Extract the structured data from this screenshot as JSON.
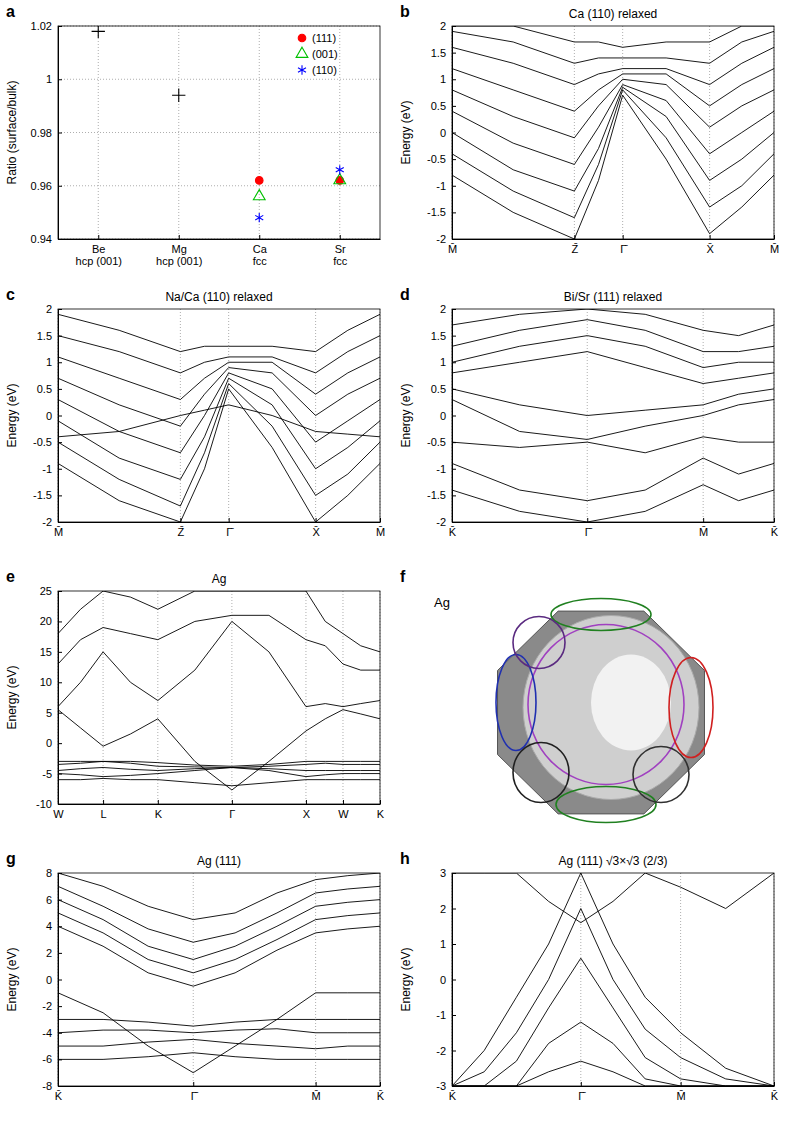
{
  "chart_data": [
    {
      "type": "scatter",
      "panel_label": "a",
      "ylabel": "Ratio (surface/bulk)",
      "categories": [
        "Be\nhcp (001)",
        "Mg\nhcp (001)",
        "Ca\nfcc",
        "Sr\nfcc"
      ],
      "ylim": [
        0.94,
        1.02
      ],
      "yticks": [
        0.94,
        0.96,
        0.98,
        1,
        1.02
      ],
      "grid": true,
      "legend": "top-right",
      "series": [
        {
          "color": "#000000",
          "marker": "plus",
          "values": [
            1.018,
            0.994,
            null,
            null
          ]
        },
        {
          "name": "(111)",
          "color": "#ff0000",
          "marker": "circle",
          "values": [
            null,
            null,
            0.962,
            0.962
          ]
        },
        {
          "name": "(001)",
          "color": "#00c000",
          "marker": "triangle-open",
          "values": [
            null,
            null,
            0.956,
            0.962
          ]
        },
        {
          "name": "(110)",
          "color": "#0000ff",
          "marker": "asterisk",
          "values": [
            null,
            null,
            0.948,
            0.966
          ]
        }
      ]
    },
    {
      "type": "line",
      "panel_label": "b",
      "title": "Ca (110) relaxed",
      "ylabel": "Energy (eV)",
      "color": "#000000",
      "grid": "x",
      "x": [
        0,
        0.19,
        0.38,
        0.455,
        0.53,
        0.665,
        0.8,
        0.9,
        1
      ],
      "xlim": [
        0,
        1
      ],
      "xticks": [
        {
          "value": 0,
          "label": "M̄"
        },
        {
          "value": 0.38,
          "label": "Z̄"
        },
        {
          "value": 0.53,
          "label": "Γ̄"
        },
        {
          "value": 0.8,
          "label": "X̄"
        },
        {
          "value": 1,
          "label": "M̄"
        }
      ],
      "ylim": [
        -2,
        2
      ],
      "yticks": [
        -2,
        -1.5,
        -1,
        -0.5,
        0,
        0.5,
        1,
        1.5,
        2
      ],
      "series": [
        {
          "values": [
            -0.8,
            -1.5,
            -2.0,
            -0.9,
            0.7,
            -0.5,
            -1.9,
            -1.4,
            -0.8
          ]
        },
        {
          "values": [
            -0.4,
            -1.1,
            -1.6,
            -0.6,
            0.8,
            -0.1,
            -1.4,
            -1.0,
            -0.4
          ]
        },
        {
          "values": [
            0.0,
            -0.7,
            -1.1,
            -0.3,
            0.85,
            0.3,
            -0.9,
            -0.5,
            0.0
          ]
        },
        {
          "values": [
            0.4,
            -0.2,
            -0.6,
            0.1,
            0.9,
            0.6,
            -0.4,
            0.0,
            0.4
          ]
        },
        {
          "values": [
            0.8,
            0.3,
            -0.1,
            0.5,
            1.0,
            0.9,
            0.1,
            0.5,
            0.8
          ]
        },
        {
          "values": [
            1.2,
            0.8,
            0.4,
            0.8,
            1.1,
            1.1,
            0.5,
            0.9,
            1.2
          ]
        },
        {
          "values": [
            1.6,
            1.3,
            0.9,
            1.1,
            1.2,
            1.2,
            0.9,
            1.3,
            1.6
          ]
        },
        {
          "values": [
            1.9,
            1.7,
            1.3,
            1.4,
            1.4,
            1.4,
            1.3,
            1.7,
            1.9
          ]
        },
        {
          "values": [
            2.0,
            2.0,
            1.7,
            1.7,
            1.6,
            1.7,
            1.7,
            2.0,
            2.0
          ]
        }
      ]
    },
    {
      "type": "line",
      "panel_label": "c",
      "title": "Na/Ca (110) relaxed",
      "ylabel": "Energy (eV)",
      "color": "#000000",
      "grid": "x",
      "x": [
        0,
        0.19,
        0.38,
        0.455,
        0.53,
        0.665,
        0.8,
        0.9,
        1
      ],
      "xlim": [
        0,
        1
      ],
      "xticks": [
        {
          "value": 0,
          "label": "M̄"
        },
        {
          "value": 0.38,
          "label": "Z̄"
        },
        {
          "value": 0.53,
          "label": "Γ̄"
        },
        {
          "value": 0.8,
          "label": "X̄"
        },
        {
          "value": 1,
          "label": "M̄"
        }
      ],
      "ylim": [
        -2,
        2
      ],
      "yticks": [
        -2,
        -1.5,
        -1,
        -0.5,
        0,
        0.5,
        1,
        1.5,
        2
      ],
      "series": [
        {
          "values": [
            -0.9,
            -1.6,
            -2.0,
            -1.0,
            0.5,
            -0.6,
            -2.0,
            -1.5,
            -0.9
          ]
        },
        {
          "values": [
            -0.5,
            -1.2,
            -1.7,
            -0.7,
            0.6,
            -0.2,
            -1.5,
            -1.1,
            -0.5
          ]
        },
        {
          "values": [
            -0.1,
            -0.8,
            -1.2,
            -0.4,
            0.7,
            0.2,
            -1.0,
            -0.6,
            -0.1
          ]
        },
        {
          "values": [
            0.3,
            -0.3,
            -0.7,
            0.0,
            0.8,
            0.5,
            -0.5,
            -0.1,
            0.3
          ]
        },
        {
          "values": [
            0.7,
            0.2,
            -0.2,
            0.4,
            0.9,
            0.8,
            0.0,
            0.4,
            0.7
          ]
        },
        {
          "values": [
            1.1,
            0.7,
            0.3,
            0.7,
            1.0,
            1.0,
            0.4,
            0.8,
            1.1
          ]
        },
        {
          "values": [
            1.5,
            1.2,
            0.8,
            1.0,
            1.1,
            1.1,
            0.8,
            1.2,
            1.5
          ]
        },
        {
          "values": [
            1.9,
            1.6,
            1.2,
            1.3,
            1.3,
            1.3,
            1.2,
            1.6,
            1.9
          ]
        },
        {
          "values": [
            -0.4,
            -0.3,
            0.0,
            0.1,
            0.2,
            0.0,
            -0.3,
            -0.35,
            -0.4
          ]
        }
      ]
    },
    {
      "type": "line",
      "panel_label": "d",
      "title": "Bi/Sr (111) relaxed",
      "ylabel": "Energy (eV)",
      "color": "#000000",
      "grid": "x",
      "x": [
        0,
        0.21,
        0.42,
        0.6,
        0.78,
        0.89,
        1
      ],
      "xlim": [
        0,
        1
      ],
      "xticks": [
        {
          "value": 0,
          "label": "K̄"
        },
        {
          "value": 0.42,
          "label": "Γ̄"
        },
        {
          "value": 0.78,
          "label": "M̄"
        },
        {
          "value": 1,
          "label": "K̄"
        }
      ],
      "ylim": [
        -2,
        2
      ],
      "yticks": [
        -2,
        -1.5,
        -1,
        -0.5,
        0,
        0.5,
        1,
        1.5,
        2
      ],
      "series": [
        {
          "values": [
            -1.4,
            -1.8,
            -2.0,
            -1.8,
            -1.3,
            -1.6,
            -1.4
          ]
        },
        {
          "values": [
            -0.9,
            -1.4,
            -1.6,
            -1.4,
            -0.8,
            -1.1,
            -0.9
          ]
        },
        {
          "values": [
            -0.5,
            -0.6,
            -0.5,
            -0.7,
            -0.4,
            -0.5,
            -0.5
          ]
        },
        {
          "values": [
            0.3,
            -0.3,
            -0.45,
            -0.2,
            0.0,
            0.2,
            0.3
          ]
        },
        {
          "values": [
            0.5,
            0.2,
            0.0,
            0.1,
            0.2,
            0.4,
            0.5
          ]
        },
        {
          "values": [
            0.8,
            1.0,
            1.2,
            0.9,
            0.6,
            0.7,
            0.8
          ]
        },
        {
          "values": [
            1.0,
            1.3,
            1.5,
            1.3,
            0.9,
            1.0,
            1.0
          ]
        },
        {
          "values": [
            1.3,
            1.6,
            1.8,
            1.6,
            1.2,
            1.2,
            1.3
          ]
        },
        {
          "values": [
            1.7,
            1.9,
            2.0,
            1.9,
            1.6,
            1.5,
            1.7
          ]
        }
      ]
    },
    {
      "type": "line",
      "panel_label": "e",
      "title": "Ag",
      "ylabel": "Energy (eV)",
      "color": "#000000",
      "grid": "x",
      "x": [
        0,
        0.07,
        0.14,
        0.225,
        0.31,
        0.425,
        0.54,
        0.655,
        0.77,
        0.83,
        0.885,
        0.94,
        1
      ],
      "xlim": [
        0,
        1
      ],
      "xticks": [
        {
          "value": 0,
          "label": "W"
        },
        {
          "value": 0.14,
          "label": "L"
        },
        {
          "value": 0.31,
          "label": "K"
        },
        {
          "value": 0.54,
          "label": "Γ"
        },
        {
          "value": 0.77,
          "label": "X"
        },
        {
          "value": 0.885,
          "label": "W"
        },
        {
          "value": 1,
          "label": "K"
        }
      ],
      "ylim": [
        -10,
        25
      ],
      "yticks": [
        -10,
        -5,
        0,
        5,
        10,
        15,
        20,
        25
      ],
      "series": [
        {
          "values": [
            -6,
            -6,
            -5.8,
            -6,
            -6,
            -6.5,
            -7,
            -6.5,
            -6,
            -6,
            -6,
            -6,
            -6
          ]
        },
        {
          "values": [
            -5,
            -5.2,
            -5.5,
            -5.3,
            -5,
            -4.5,
            -4,
            -4.5,
            -5.5,
            -5.2,
            -5,
            -5,
            -5
          ]
        },
        {
          "values": [
            -4.5,
            -4.2,
            -4,
            -4.3,
            -4.5,
            -4.2,
            -4,
            -4.2,
            -4.5,
            -4.5,
            -4.5,
            -4.5,
            -4.5
          ]
        },
        {
          "values": [
            -3.5,
            -3.3,
            -3,
            -3.3,
            -3.8,
            -3.9,
            -4,
            -3.8,
            -3.5,
            -3.3,
            -3.5,
            -3.5,
            -3.5
          ]
        },
        {
          "values": [
            -3,
            -3,
            -3,
            -3,
            -3.2,
            -3.6,
            -3.8,
            -3.5,
            -3,
            -3,
            -3,
            -3,
            -3
          ]
        },
        {
          "values": [
            5.5,
            2.5,
            -0.5,
            1.5,
            4,
            -3,
            -7.7,
            -3,
            2,
            4,
            5.5,
            4.8,
            4
          ]
        },
        {
          "values": [
            6,
            10,
            15,
            10,
            7,
            12,
            20,
            15,
            6,
            6.5,
            6,
            6.5,
            7
          ]
        },
        {
          "values": [
            13,
            17,
            19,
            18,
            17,
            20,
            21,
            21,
            17,
            16,
            13,
            12,
            12
          ]
        },
        {
          "values": [
            18,
            22,
            25,
            24,
            22,
            25,
            25,
            25,
            25,
            20,
            18,
            16,
            15
          ]
        }
      ]
    },
    {
      "type": "fermi_surface",
      "panel_label": "f",
      "title": "Ag"
    },
    {
      "type": "line",
      "panel_label": "g",
      "title": "Ag (111)",
      "ylabel": "Energy (eV)",
      "color": "#000000",
      "grid": "x",
      "x": [
        0,
        0.14,
        0.28,
        0.42,
        0.55,
        0.68,
        0.8,
        0.9,
        1
      ],
      "xlim": [
        0,
        1
      ],
      "xticks": [
        {
          "value": 0,
          "label": "K̄"
        },
        {
          "value": 0.42,
          "label": "Γ̄"
        },
        {
          "value": 0.8,
          "label": "M̄"
        },
        {
          "value": 1,
          "label": "K̄"
        }
      ],
      "ylim": [
        -8,
        8
      ],
      "yticks": [
        -8,
        -6,
        -4,
        -2,
        0,
        2,
        4,
        6,
        8
      ],
      "series": [
        {
          "values": [
            -6,
            -6,
            -5.8,
            -5.5,
            -5.8,
            -6,
            -6,
            -6,
            -6
          ]
        },
        {
          "values": [
            -5,
            -5,
            -4.7,
            -4.5,
            -4.8,
            -5,
            -5.2,
            -5,
            -5
          ]
        },
        {
          "values": [
            -4,
            -3.8,
            -3.8,
            -4,
            -3.8,
            -3.7,
            -4,
            -4,
            -4
          ]
        },
        {
          "values": [
            -3,
            -3,
            -3.2,
            -3.5,
            -3.2,
            -3,
            -3,
            -3,
            -3
          ]
        },
        {
          "values": [
            -1,
            -2.5,
            -5,
            -7,
            -5,
            -3,
            -1,
            -1,
            -1
          ]
        },
        {
          "values": [
            4,
            2.5,
            0.5,
            -0.5,
            0.5,
            2.2,
            3.5,
            3.8,
            4
          ]
        },
        {
          "values": [
            5,
            3.5,
            1.5,
            0.5,
            1.5,
            3,
            4.5,
            4.8,
            5
          ]
        },
        {
          "values": [
            6,
            4.5,
            2.5,
            1.5,
            2.5,
            4,
            5.5,
            5.8,
            6
          ]
        },
        {
          "values": [
            7,
            5.5,
            3.8,
            2.8,
            3.5,
            5,
            6.5,
            6.8,
            7
          ]
        },
        {
          "values": [
            8,
            7,
            5.5,
            4.5,
            5,
            6.5,
            7.5,
            7.8,
            8
          ]
        }
      ]
    },
    {
      "type": "line",
      "panel_label": "h",
      "title": "Ag (111) √3×√3 (2/3)",
      "ylabel": "Energy (eV)",
      "color": "#000000",
      "grid": "x",
      "x": [
        0,
        0.1,
        0.2,
        0.3,
        0.4,
        0.5,
        0.6,
        0.71,
        0.85,
        1
      ],
      "xlim": [
        0,
        1
      ],
      "xticks": [
        {
          "value": 0,
          "label": "K̄"
        },
        {
          "value": 0.4,
          "label": "Γ̄"
        },
        {
          "value": 0.71,
          "label": "M̄"
        },
        {
          "value": 1,
          "label": "K̄"
        }
      ],
      "ylim": [
        -3,
        3
      ],
      "yticks": [
        -3,
        -2,
        -1,
        0,
        1,
        2,
        3
      ],
      "series": [
        {
          "values": [
            -3,
            -2,
            -0.5,
            1,
            3,
            1,
            -0.5,
            -1.5,
            -2.5,
            -3
          ]
        },
        {
          "values": [
            -3,
            -2.6,
            -1.5,
            0,
            2,
            0,
            -1.4,
            -2.2,
            -2.8,
            -3
          ]
        },
        {
          "values": [
            -3,
            -3,
            -2.3,
            -0.8,
            0.6,
            -0.8,
            -2.2,
            -2.8,
            -3,
            -3
          ]
        },
        {
          "values": [
            -3,
            -3,
            -3,
            -1.8,
            -1.2,
            -1.8,
            -2.8,
            -3,
            -3,
            -3
          ]
        },
        {
          "values": [
            -3,
            -3,
            -3,
            -2.6,
            -2.3,
            -2.6,
            -3,
            -3,
            -3,
            -3
          ]
        },
        {
          "values": [
            3,
            3,
            3,
            2.2,
            1.6,
            2.2,
            3,
            2.6,
            2.0,
            3
          ]
        }
      ]
    }
  ]
}
